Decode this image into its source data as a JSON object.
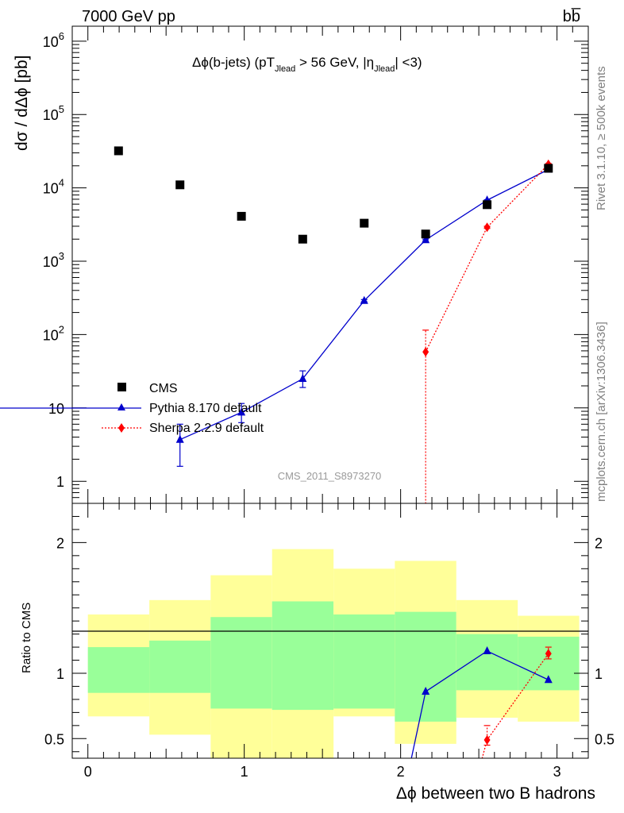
{
  "header": {
    "left": "7000 GeV pp",
    "right": "bb̅"
  },
  "side_labels": {
    "rivet": "Rivet 3.1.10, ≥ 500k events",
    "mcplots": "mcplots.cern.ch [arXiv:1306.3436]"
  },
  "watermark": "CMS_2011_S8973270",
  "chart_data": [
    {
      "type": "scatter",
      "title": "Δϕ(b-jets) (pT_Jlead > 56 GeV, |η_Jlead| <3)",
      "ylabel": "dσ / dΔϕ [pb]",
      "xlabel": "",
      "xlim": [
        -0.1,
        3.2
      ],
      "ylim": [
        0.5,
        1600000
      ],
      "yscale": "log",
      "yticks": [
        "1",
        "10",
        "10^2",
        "10^3",
        "10^4",
        "10^5",
        "10^6"
      ],
      "legend": {
        "position": "bottom-left",
        "entries": [
          "CMS",
          "Pythia 8.170 default",
          "Sherpa 2.2.9 default"
        ]
      },
      "series": [
        {
          "name": "CMS",
          "color": "#000000",
          "marker": "square",
          "x": [
            0.196,
            0.589,
            0.982,
            1.374,
            1.767,
            2.16,
            2.553,
            2.945
          ],
          "y": [
            32000,
            11000,
            4100,
            2000,
            3300,
            2350,
            5900,
            18500
          ]
        },
        {
          "name": "Pythia 8.170 default",
          "color": "#0000cc",
          "marker": "triangle",
          "x": [
            0.589,
            0.982,
            1.374,
            1.767,
            2.16,
            2.553,
            2.945
          ],
          "y": [
            3.7,
            8.7,
            25,
            290,
            1950,
            6800,
            17800
          ],
          "yerr_low": [
            1.6,
            6.3,
            19,
            280,
            1900,
            6700,
            17600
          ],
          "yerr_high": [
            6.0,
            11.5,
            32,
            300,
            2000,
            6900,
            18000
          ]
        },
        {
          "name": "Sherpa 2.2.9 default",
          "color": "#ff0000",
          "marker": "diamond",
          "line": "dotted",
          "x": [
            2.16,
            2.553,
            2.945
          ],
          "y": [
            58,
            2900,
            21000
          ],
          "yerr_low": [
            0.3,
            2800,
            20500
          ],
          "yerr_high": [
            115,
            3000,
            21500
          ]
        }
      ]
    },
    {
      "type": "line",
      "title": "",
      "ylabel": "Ratio to CMS",
      "xlabel": "Δϕ between two B hadrons",
      "xlim": [
        -0.1,
        3.2
      ],
      "ylim": [
        0.35,
        2.3
      ],
      "xticks": [
        "0",
        "1",
        "2",
        "3"
      ],
      "yticks": [
        "0.5",
        "1",
        "2"
      ],
      "bands": {
        "edges": [
          0.0,
          0.393,
          0.785,
          1.178,
          1.571,
          1.963,
          2.356,
          2.749,
          3.142
        ],
        "inner": [
          [
            0.85,
            1.2
          ],
          [
            0.85,
            1.25
          ],
          [
            0.73,
            1.43
          ],
          [
            0.72,
            1.55
          ],
          [
            0.73,
            1.45
          ],
          [
            0.63,
            1.47
          ],
          [
            0.87,
            1.3
          ],
          [
            0.87,
            1.28
          ]
        ],
        "outer": [
          [
            0.67,
            1.45
          ],
          [
            0.53,
            1.56
          ],
          [
            0.3,
            1.75
          ],
          [
            0.3,
            1.95
          ],
          [
            0.67,
            1.8
          ],
          [
            0.46,
            1.86
          ],
          [
            0.66,
            1.56
          ],
          [
            0.63,
            1.44
          ]
        ],
        "inner_color": "#99ff99",
        "outer_color": "#ffff99"
      },
      "series": [
        {
          "name": "Pythia 8.170 default",
          "color": "#0000cc",
          "marker": "triangle",
          "x": [
            2.06,
            2.16,
            2.553,
            2.945
          ],
          "y": [
            0.3,
            0.86,
            1.17,
            0.95
          ]
        },
        {
          "name": "Sherpa 2.2.9 default",
          "color": "#ff0000",
          "marker": "diamond",
          "line": "dotted",
          "x": [
            2.51,
            2.553,
            2.945
          ],
          "y": [
            0.3,
            0.49,
            1.15
          ],
          "yerr_low": [
            0.3,
            0.45,
            1.11
          ],
          "yerr_high": [
            0.3,
            0.6,
            1.2
          ]
        }
      ]
    }
  ]
}
